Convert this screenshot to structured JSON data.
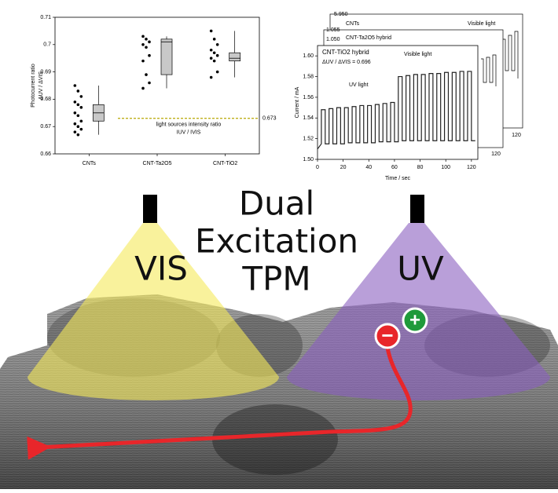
{
  "chart_data": [
    {
      "type": "box",
      "ylabel": "Photocurrent ratio",
      "ylabel2": "ΔUV / ΔVIS",
      "categories": [
        "CNTs",
        "CNT-Ta2O5",
        "CNT-TiO2"
      ],
      "points": [
        [
          0.685,
          0.683,
          0.681,
          0.679,
          0.678,
          0.677,
          0.675,
          0.674,
          0.672,
          0.671,
          0.67,
          0.669,
          0.668,
          0.667
        ],
        [
          0.703,
          0.702,
          0.701,
          0.7,
          0.699,
          0.696,
          0.694,
          0.689,
          0.686,
          0.684
        ],
        [
          0.705,
          0.702,
          0.7,
          0.698,
          0.697,
          0.696,
          0.695,
          0.694,
          0.69,
          0.688
        ]
      ],
      "boxes": [
        {
          "whislo": 0.667,
          "q1": 0.672,
          "med": 0.675,
          "q3": 0.678,
          "whishi": 0.685
        },
        {
          "whislo": 0.684,
          "q1": 0.689,
          "med": 0.701,
          "q3": 0.702,
          "whishi": 0.703
        },
        {
          "whislo": 0.688,
          "q1": 0.694,
          "med": 0.695,
          "q3": 0.697,
          "whishi": 0.705
        }
      ],
      "box_color": "#c8c8c8",
      "ylim": [
        0.66,
        0.71
      ],
      "yticks": [
        0.66,
        0.67,
        0.68,
        0.69,
        0.7,
        0.71
      ],
      "reference": {
        "value": 0.673,
        "text": "light sources intensity ratio",
        "subtext": "IUV / IVIS",
        "color": "#b8a800"
      }
    },
    {
      "type": "line",
      "xlabel": "Time / sec",
      "ylabel": "Current / mA",
      "x": [
        0,
        3,
        3,
        6,
        6,
        9,
        9,
        12,
        12,
        15,
        15,
        18,
        18,
        21,
        21,
        24,
        24,
        27,
        27,
        30,
        30,
        33,
        33,
        36,
        36,
        39,
        39,
        42,
        42,
        45,
        45,
        48,
        48,
        51,
        51,
        54,
        54,
        57,
        57,
        60,
        60,
        63,
        63,
        66,
        66,
        69,
        69,
        72,
        72,
        75,
        75,
        78,
        78,
        81,
        81,
        84,
        84,
        87,
        87,
        90,
        90,
        93,
        93,
        96,
        96,
        99,
        99,
        102,
        102,
        105,
        105,
        108,
        108,
        111,
        111,
        114,
        114,
        117,
        117,
        120,
        120,
        123
      ],
      "series": [
        {
          "color": "#222222",
          "values": [
            1.51,
            1.515,
            1.548,
            1.548,
            1.515,
            1.515,
            1.549,
            1.549,
            1.515,
            1.515,
            1.55,
            1.55,
            1.515,
            1.515,
            1.55,
            1.55,
            1.516,
            1.516,
            1.551,
            1.551,
            1.516,
            1.516,
            1.552,
            1.552,
            1.516,
            1.516,
            1.552,
            1.552,
            1.516,
            1.516,
            1.553,
            1.553,
            1.517,
            1.517,
            1.554,
            1.554,
            1.517,
            1.517,
            1.555,
            1.555,
            1.517,
            1.517,
            1.58,
            1.58,
            1.518,
            1.518,
            1.581,
            1.581,
            1.518,
            1.518,
            1.582,
            1.582,
            1.518,
            1.518,
            1.582,
            1.582,
            1.518,
            1.518,
            1.583,
            1.583,
            1.518,
            1.518,
            1.583,
            1.583,
            1.518,
            1.518,
            1.584,
            1.584,
            1.518,
            1.518,
            1.584,
            1.584,
            1.518,
            1.518,
            1.585,
            1.585,
            1.518,
            1.518,
            1.585,
            1.585,
            1.518,
            1.518
          ]
        }
      ],
      "xlim": [
        0,
        125
      ],
      "xticks": [
        0,
        20,
        40,
        60,
        80,
        100,
        120
      ],
      "ylim": [
        1.5,
        1.61
      ],
      "yticks": [
        {
          "value": 1.5,
          "label": "1.50"
        },
        1.52,
        1.54,
        1.56,
        1.58,
        {
          "value": 1.6,
          "label": "1.60"
        }
      ],
      "annotations": [
        "CNT-TiO2 hybrid",
        "ΔUV / ΔVIS = 0.696",
        "UV light",
        "Visible light"
      ]
    }
  ],
  "background_panels": {
    "labels": [
      "5.950",
      "CNTs",
      "1.055",
      "1.050",
      "CNT-Ta2O5 hybrid",
      "Visible light"
    ],
    "ticks": [
      "120",
      "120"
    ]
  },
  "illustration": {
    "title": [
      "Dual",
      "Excitation",
      "TPM"
    ],
    "left_label": "VIS",
    "right_label": "UV",
    "minus": "−",
    "plus": "+"
  }
}
